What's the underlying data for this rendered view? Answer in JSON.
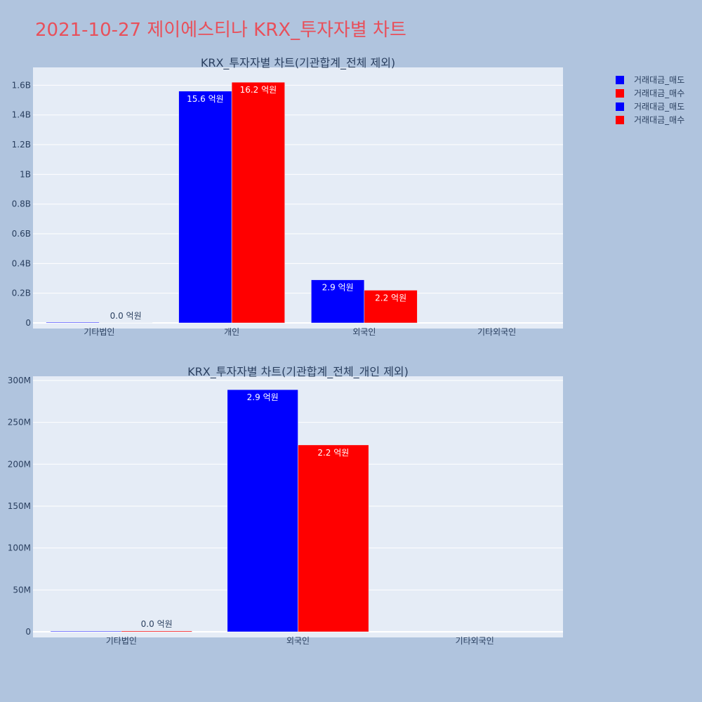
{
  "page": {
    "title": "2021-10-27 제이에스티나 KRX_투자자별 차트"
  },
  "legend": [
    {
      "name": "거래대금_매도",
      "color": "#0000ff"
    },
    {
      "name": "거래대금_매수",
      "color": "#ff0000"
    },
    {
      "name": "거래대금_매도",
      "color": "#0000ff"
    },
    {
      "name": "거래대금_매수",
      "color": "#ff0000"
    }
  ],
  "chart_data": [
    {
      "type": "bar",
      "title": "KRX_투자자별 차트(기관합계_전체 제외)",
      "categories": [
        "기타법인",
        "개인",
        "외국인",
        "기타외국인"
      ],
      "series": [
        {
          "name": "거래대금_매도",
          "color": "#0000ff",
          "values": [
            0,
            1560000000,
            290000000,
            null
          ],
          "labels": [
            "",
            "15.6 억원",
            "2.9 억원",
            ""
          ]
        },
        {
          "name": "거래대금_매수",
          "color": "#ff0000",
          "values": [
            1000000,
            1620000000,
            220000000,
            null
          ],
          "labels": [
            "0.0 억원",
            "16.2 억원",
            "2.2 억원",
            ""
          ]
        }
      ],
      "ylim": [
        0,
        1720000000
      ],
      "yticks": [
        0,
        200000000,
        400000000,
        600000000,
        800000000,
        1000000000,
        1200000000,
        1400000000,
        1600000000
      ],
      "ytick_labels": [
        "0",
        "0.2B",
        "0.4B",
        "0.6B",
        "0.8B",
        "1B",
        "1.2B",
        "1.4B",
        "1.6B"
      ],
      "grid": true
    },
    {
      "type": "bar",
      "title": "KRX_투자자별 차트(기관합계_전체_개인 제외)",
      "categories": [
        "기타법인",
        "외국인",
        "기타외국인"
      ],
      "series": [
        {
          "name": "거래대금_매도",
          "color": "#0000ff",
          "values": [
            0,
            289000000,
            null
          ],
          "labels": [
            "",
            "2.9 억원",
            ""
          ]
        },
        {
          "name": "거래대금_매수",
          "color": "#ff0000",
          "values": [
            1000000,
            223000000,
            null
          ],
          "labels": [
            "0.0 억원",
            "2.2 억원",
            ""
          ]
        }
      ],
      "ylim": [
        0,
        305000000
      ],
      "yticks": [
        0,
        50000000,
        100000000,
        150000000,
        200000000,
        250000000,
        300000000
      ],
      "ytick_labels": [
        "0",
        "50M",
        "100M",
        "150M",
        "200M",
        "250M",
        "300M"
      ],
      "grid": true
    }
  ]
}
